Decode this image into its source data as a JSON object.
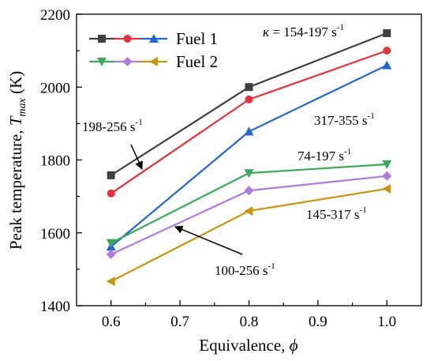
{
  "chart_data": {
    "type": "line",
    "xlabel": {
      "text": "Equivalence, ",
      "symbol": "ϕ"
    },
    "ylabel": {
      "text": "Peak temperature, ",
      "symbol": "T",
      "subscript": "max",
      "unit": " (K)"
    },
    "xlim": [
      0.55,
      1.05
    ],
    "ylim": [
      1400,
      2200
    ],
    "xticks": [
      0.6,
      0.7,
      0.8,
      0.9,
      1.0
    ],
    "xtick_labels": [
      "0.6",
      "0.7",
      "0.8",
      "0.9",
      "1.0"
    ],
    "yticks": [
      1400,
      1600,
      1800,
      2000,
      2200
    ],
    "ytick_labels": [
      "1400",
      "1600",
      "1800",
      "2000",
      "2200"
    ],
    "x": [
      0.6,
      0.8,
      1.0
    ],
    "series": [
      {
        "values": [
          1758,
          2000,
          2148
        ],
        "color": "#404040",
        "marker": "square",
        "legend_group": 0
      },
      {
        "values": [
          1708,
          1966,
          2100
        ],
        "color": "#e8313a",
        "marker": "circle",
        "legend_group": 0
      },
      {
        "values": [
          1562,
          1878,
          2060
        ],
        "color": "#2167d4",
        "marker": "triangle-up",
        "legend_group": 0
      },
      {
        "values": [
          1572,
          1764,
          1788
        ],
        "color": "#3aaa5a",
        "marker": "triangle-down",
        "legend_group": 1
      },
      {
        "values": [
          1541,
          1716,
          1756
        ],
        "color": "#b07ae0",
        "marker": "diamond",
        "legend_group": 1
      },
      {
        "values": [
          1467,
          1660,
          1721
        ],
        "color": "#c8960c",
        "marker": "triangle-left",
        "legend_group": 1
      }
    ],
    "legend": {
      "position": "top-left",
      "entries": [
        {
          "label": "Fuel 1",
          "series_indices": [
            0,
            1,
            2
          ]
        },
        {
          "label": "Fuel 2",
          "series_indices": [
            3,
            4,
            5
          ]
        }
      ]
    },
    "annotations": [
      {
        "prefix": "κ",
        "text": " = 154-197 s",
        "sup": "-1"
      },
      {
        "prefix": "",
        "text": "198-256 s",
        "sup": "-1"
      },
      {
        "prefix": "",
        "text": "317-355 s",
        "sup": "-1"
      },
      {
        "prefix": "",
        "text": "74-197 s",
        "sup": "-1"
      },
      {
        "prefix": "",
        "text": "145-317 s",
        "sup": "-1"
      },
      {
        "prefix": "",
        "text": "100-256 s",
        "sup": "-1"
      }
    ],
    "grid": false
  }
}
